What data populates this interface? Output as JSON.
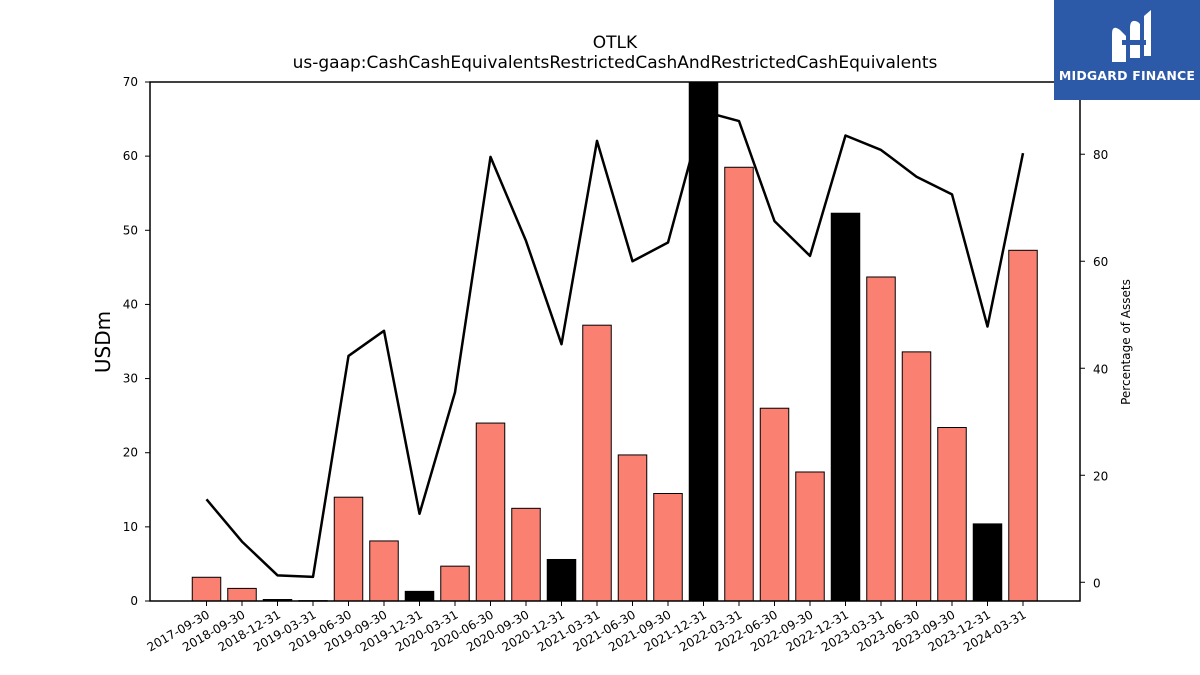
{
  "logo": {
    "text": "MIDGARD FINANCE"
  },
  "chart_data": {
    "type": "bar",
    "title": "OTLK",
    "subtitle": "us-gaap:CashCashEquivalentsRestrictedCashAndRestrictedCashEquivalents",
    "ylabel": "USDm",
    "ylabel_right": "Percentage of Assets",
    "ylim": [
      0,
      70
    ],
    "ylim_right": [
      -3.5,
      93.5
    ],
    "yticks": [
      0,
      10,
      20,
      30,
      40,
      50,
      60,
      70
    ],
    "yticks_right": [
      0,
      20,
      40,
      60,
      80
    ],
    "categories": [
      "2017-09-30",
      "2018-09-30",
      "2018-12-31",
      "2019-03-31",
      "2019-06-30",
      "2019-09-30",
      "2019-12-31",
      "2020-03-31",
      "2020-06-30",
      "2020-09-30",
      "2020-12-31",
      "2021-03-31",
      "2021-06-30",
      "2021-09-30",
      "2021-12-31",
      "2022-03-31",
      "2022-06-30",
      "2022-09-30",
      "2022-12-31",
      "2023-03-31",
      "2023-06-30",
      "2023-09-30",
      "2023-12-31",
      "2024-03-31"
    ],
    "series": [
      {
        "kind": "bar",
        "values": [
          3.2,
          1.7,
          0.2,
          0.05,
          14.0,
          8.1,
          1.3,
          4.7,
          24.0,
          12.5,
          5.6,
          37.2,
          19.7,
          14.5,
          70.0,
          58.5,
          26.0,
          17.4,
          52.3,
          43.7,
          33.6,
          23.4,
          10.4,
          47.3
        ],
        "colors": [
          "#fa8072",
          "#fa8072",
          "#000000",
          "#fa8072",
          "#fa8072",
          "#fa8072",
          "#000000",
          "#fa8072",
          "#fa8072",
          "#fa8072",
          "#000000",
          "#fa8072",
          "#fa8072",
          "#fa8072",
          "#000000",
          "#fa8072",
          "#fa8072",
          "#fa8072",
          "#000000",
          "#fa8072",
          "#fa8072",
          "#fa8072",
          "#000000",
          "#fa8072"
        ]
      },
      {
        "kind": "line",
        "axis": "right",
        "color": "#000000",
        "values": [
          15.5,
          7.6,
          1.3,
          1.0,
          42.3,
          47.0,
          12.8,
          35.5,
          79.5,
          63.8,
          44.5,
          82.5,
          60.0,
          63.5,
          88.0,
          86.2,
          67.5,
          61.0,
          83.5,
          80.8,
          75.8,
          72.5,
          47.8,
          80.2
        ]
      }
    ],
    "colors": {
      "positive_bar": "#fa8072",
      "highlight_bar": "#000000",
      "line": "#000000"
    },
    "grid": false
  }
}
